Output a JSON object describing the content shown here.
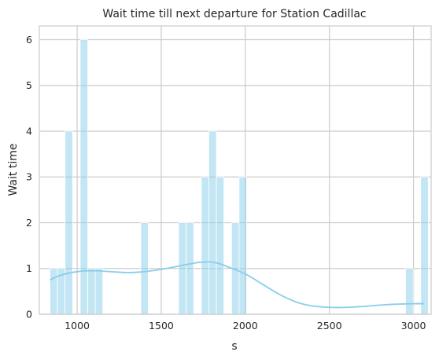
{
  "chart_data": {
    "type": "bar",
    "title": "Wait time till next departure for Station Cadillac",
    "xlabel": "s",
    "ylabel": "Wait time",
    "xlim": [
      775,
      3105
    ],
    "ylim": [
      0,
      6.3
    ],
    "xticks": [
      1000,
      1500,
      2000,
      2500,
      3000
    ],
    "yticks": [
      0,
      1,
      2,
      3,
      4,
      5,
      6
    ],
    "grid": true,
    "bin_width": 45,
    "bins": [
      {
        "x_start": 838,
        "count": 1
      },
      {
        "x_start": 883,
        "count": 1
      },
      {
        "x_start": 928,
        "count": 4
      },
      {
        "x_start": 1018,
        "count": 6
      },
      {
        "x_start": 1063,
        "count": 1
      },
      {
        "x_start": 1108,
        "count": 1
      },
      {
        "x_start": 1378,
        "count": 2
      },
      {
        "x_start": 1603,
        "count": 2
      },
      {
        "x_start": 1648,
        "count": 2
      },
      {
        "x_start": 1738,
        "count": 3
      },
      {
        "x_start": 1783,
        "count": 4
      },
      {
        "x_start": 1828,
        "count": 3
      },
      {
        "x_start": 1918,
        "count": 2
      },
      {
        "x_start": 1963,
        "count": 3
      },
      {
        "x_start": 2953,
        "count": 1
      },
      {
        "x_start": 3043,
        "count": 3
      }
    ],
    "kde": {
      "x": [
        838,
        900,
        1000,
        1100,
        1200,
        1300,
        1400,
        1500,
        1600,
        1700,
        1750,
        1800,
        1850,
        1900,
        2000,
        2100,
        2200,
        2300,
        2400,
        2500,
        2600,
        2700,
        2800,
        2900,
        3000,
        3063
      ],
      "y": [
        0.75,
        0.85,
        0.93,
        0.95,
        0.93,
        0.91,
        0.93,
        0.98,
        1.05,
        1.12,
        1.14,
        1.14,
        1.1,
        1.03,
        0.88,
        0.66,
        0.44,
        0.27,
        0.18,
        0.15,
        0.15,
        0.17,
        0.2,
        0.22,
        0.23,
        0.23
      ]
    },
    "colors": {
      "bar": "#87ceeb",
      "line": "#87ceeb",
      "grid": "#cccccc"
    }
  }
}
